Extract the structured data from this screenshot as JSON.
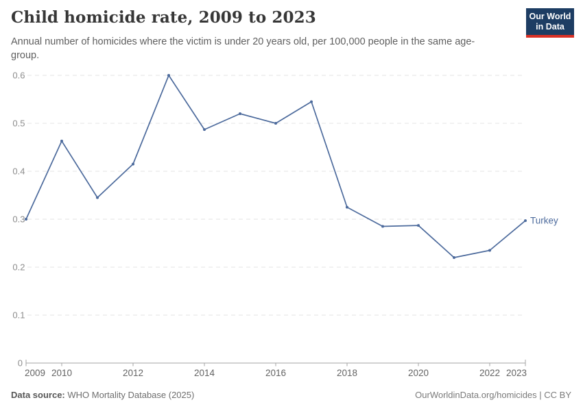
{
  "header": {
    "title": "Child homicide rate, 2009 to 2023",
    "subtitle": "Annual number of homicides where the victim is under 20 years old, per 100,000 people in the same age-group.",
    "logo": {
      "line1": "Our World",
      "line2": "in Data",
      "bg_color": "#1d3d63",
      "accent_color": "#d93025"
    }
  },
  "chart_data": {
    "type": "line",
    "title": "Child homicide rate, 2009 to 2023",
    "x": [
      2009,
      2010,
      2011,
      2012,
      2013,
      2014,
      2015,
      2016,
      2017,
      2018,
      2019,
      2020,
      2021,
      2022,
      2023
    ],
    "series": [
      {
        "name": "Turkey",
        "color": "#4C6A9C",
        "values": [
          0.3,
          0.463,
          0.345,
          0.415,
          0.6,
          0.487,
          0.52,
          0.5,
          0.545,
          0.325,
          0.285,
          0.287,
          0.22,
          0.235,
          0.297
        ]
      }
    ],
    "xlabel": "",
    "ylabel": "",
    "ylim": [
      0,
      0.6
    ],
    "yticks": [
      0,
      0.1,
      0.2,
      0.3,
      0.4,
      0.5,
      0.6
    ],
    "xtick_labels": [
      "2009",
      "2010",
      "2012",
      "2014",
      "2016",
      "2018",
      "2020",
      "2022",
      "2023"
    ],
    "grid": "horizontal-dashed",
    "grid_color": "#e3e3e3",
    "axis_color": "#a3a3a3",
    "ytick_label_color": "#8c8c8c",
    "xtick_label_color": "#636363",
    "legend_position": "end-of-line",
    "end_label": "Turkey"
  },
  "footer": {
    "datasource_label": "Data source:",
    "datasource_value": "WHO Mortality Database (2025)",
    "credit": "OurWorldinData.org/homicides | CC BY"
  }
}
